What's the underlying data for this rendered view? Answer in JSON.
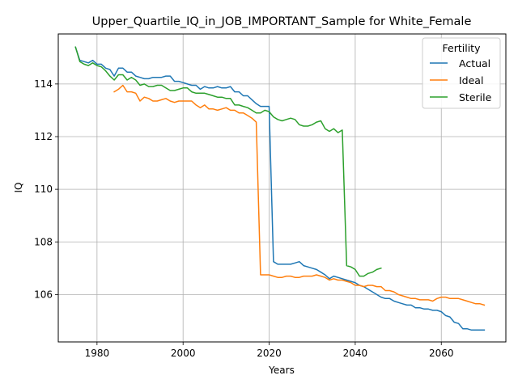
{
  "chart_data": {
    "type": "line",
    "title": "Upper_Quartile_IQ_in_JOB_IMPORTANT_Sample for White_Female",
    "xlabel": "Years",
    "ylabel": "IQ",
    "xlim": [
      1971,
      2075
    ],
    "ylim": [
      104.2,
      115.9
    ],
    "xticks": [
      1980,
      2000,
      2020,
      2040,
      2060
    ],
    "yticks": [
      106,
      108,
      110,
      112,
      114
    ],
    "grid": true,
    "legend": {
      "title": "Fertility",
      "placement": "top-right"
    },
    "series": [
      {
        "name": "Actual",
        "color": "#1f77b4",
        "x": [
          1975,
          1976,
          1977,
          1978,
          1979,
          1980,
          1981,
          1982,
          1983,
          1984,
          1985,
          1986,
          1987,
          1988,
          1989,
          1990,
          1991,
          1992,
          1993,
          1994,
          1995,
          1996,
          1997,
          1998,
          1999,
          2000,
          2001,
          2002,
          2003,
          2004,
          2005,
          2006,
          2007,
          2008,
          2009,
          2010,
          2011,
          2012,
          2013,
          2014,
          2015,
          2016,
          2017,
          2018,
          2019,
          2020,
          2021,
          2022,
          2023,
          2024,
          2025,
          2026,
          2027,
          2028,
          2029,
          2030,
          2031,
          2032,
          2033,
          2034,
          2035,
          2036,
          2037,
          2038,
          2039,
          2040,
          2041,
          2042,
          2043,
          2044,
          2045,
          2046,
          2047,
          2048,
          2049,
          2050,
          2051,
          2052,
          2053,
          2054,
          2055,
          2056,
          2057,
          2058,
          2059,
          2060,
          2061,
          2062,
          2063,
          2064,
          2065,
          2066,
          2067,
          2068,
          2069,
          2070
        ],
        "y": [
          115.4,
          114.9,
          114.85,
          114.8,
          114.9,
          114.75,
          114.75,
          114.6,
          114.55,
          114.3,
          114.6,
          114.6,
          114.45,
          114.45,
          114.3,
          114.25,
          114.2,
          114.2,
          114.25,
          114.25,
          114.25,
          114.3,
          114.3,
          114.1,
          114.1,
          114.05,
          114.0,
          113.95,
          113.95,
          113.8,
          113.9,
          113.85,
          113.85,
          113.9,
          113.85,
          113.85,
          113.9,
          113.7,
          113.7,
          113.55,
          113.55,
          113.4,
          113.25,
          113.15,
          113.15,
          113.15,
          107.25,
          107.15,
          107.15,
          107.15,
          107.15,
          107.2,
          107.25,
          107.1,
          107.05,
          107.0,
          106.95,
          106.85,
          106.75,
          106.6,
          106.7,
          106.65,
          106.6,
          106.55,
          106.5,
          106.45,
          106.35,
          106.3,
          106.2,
          106.1,
          106.0,
          105.9,
          105.85,
          105.85,
          105.75,
          105.7,
          105.65,
          105.6,
          105.6,
          105.5,
          105.5,
          105.45,
          105.45,
          105.4,
          105.4,
          105.35,
          105.2,
          105.15,
          104.95,
          104.9,
          104.7,
          104.7,
          104.65,
          104.65,
          104.65,
          104.65
        ]
      },
      {
        "name": "Ideal",
        "color": "#ff7f0e",
        "x": [
          1984,
          1985,
          1986,
          1987,
          1988,
          1989,
          1990,
          1991,
          1992,
          1993,
          1994,
          1995,
          1996,
          1997,
          1998,
          1999,
          2000,
          2001,
          2002,
          2003,
          2004,
          2005,
          2006,
          2007,
          2008,
          2009,
          2010,
          2011,
          2012,
          2013,
          2014,
          2015,
          2016,
          2017,
          2018,
          2019,
          2020,
          2021,
          2022,
          2023,
          2024,
          2025,
          2026,
          2027,
          2028,
          2029,
          2030,
          2031,
          2032,
          2033,
          2034,
          2035,
          2036,
          2037,
          2038,
          2039,
          2040,
          2041,
          2042,
          2043,
          2044,
          2045,
          2046,
          2047,
          2048,
          2049,
          2050,
          2051,
          2052,
          2053,
          2054,
          2055,
          2056,
          2057,
          2058,
          2059,
          2060,
          2061,
          2062,
          2063,
          2064,
          2065,
          2066,
          2067,
          2068,
          2069,
          2070
        ],
        "y": [
          113.7,
          113.8,
          113.95,
          113.7,
          113.7,
          113.65,
          113.35,
          113.5,
          113.45,
          113.35,
          113.35,
          113.4,
          113.45,
          113.35,
          113.3,
          113.35,
          113.35,
          113.35,
          113.35,
          113.2,
          113.1,
          113.2,
          113.05,
          113.05,
          113.0,
          113.05,
          113.1,
          113.0,
          113.0,
          112.9,
          112.9,
          112.8,
          112.7,
          112.55,
          106.75,
          106.75,
          106.75,
          106.7,
          106.65,
          106.65,
          106.7,
          106.7,
          106.65,
          106.65,
          106.7,
          106.7,
          106.7,
          106.75,
          106.7,
          106.65,
          106.55,
          106.6,
          106.55,
          106.55,
          106.5,
          106.45,
          106.35,
          106.35,
          106.3,
          106.35,
          106.35,
          106.3,
          106.3,
          106.15,
          106.15,
          106.1,
          106.0,
          105.95,
          105.9,
          105.85,
          105.85,
          105.8,
          105.8,
          105.8,
          105.75,
          105.85,
          105.9,
          105.9,
          105.85,
          105.85,
          105.85,
          105.8,
          105.75,
          105.7,
          105.65,
          105.65,
          105.6
        ]
      },
      {
        "name": "Sterile",
        "color": "#2ca02c",
        "x": [
          1975,
          1976,
          1977,
          1978,
          1979,
          1980,
          1981,
          1982,
          1983,
          1984,
          1985,
          1986,
          1987,
          1988,
          1989,
          1990,
          1991,
          1992,
          1993,
          1994,
          1995,
          1996,
          1997,
          1998,
          1999,
          2000,
          2001,
          2002,
          2003,
          2004,
          2005,
          2006,
          2007,
          2008,
          2009,
          2010,
          2011,
          2012,
          2013,
          2014,
          2015,
          2016,
          2017,
          2018,
          2019,
          2020,
          2021,
          2022,
          2023,
          2024,
          2025,
          2026,
          2027,
          2028,
          2029,
          2030,
          2031,
          2032,
          2033,
          2034,
          2035,
          2036,
          2037,
          2038,
          2039,
          2040,
          2041,
          2042,
          2043,
          2044,
          2045,
          2046
        ],
        "y": [
          115.4,
          114.85,
          114.75,
          114.7,
          114.8,
          114.7,
          114.65,
          114.5,
          114.3,
          114.15,
          114.35,
          114.35,
          114.15,
          114.25,
          114.15,
          113.95,
          114.0,
          113.9,
          113.9,
          113.95,
          113.95,
          113.85,
          113.75,
          113.75,
          113.8,
          113.85,
          113.85,
          113.7,
          113.65,
          113.65,
          113.65,
          113.6,
          113.55,
          113.5,
          113.5,
          113.45,
          113.45,
          113.2,
          113.2,
          113.15,
          113.1,
          113.0,
          112.9,
          112.9,
          113.0,
          112.95,
          112.75,
          112.65,
          112.6,
          112.65,
          112.7,
          112.65,
          112.45,
          112.4,
          112.4,
          112.45,
          112.55,
          112.6,
          112.3,
          112.2,
          112.3,
          112.15,
          112.25,
          107.1,
          107.05,
          106.95,
          106.7,
          106.7,
          106.8,
          106.85,
          106.95,
          107.0
        ]
      }
    ]
  }
}
